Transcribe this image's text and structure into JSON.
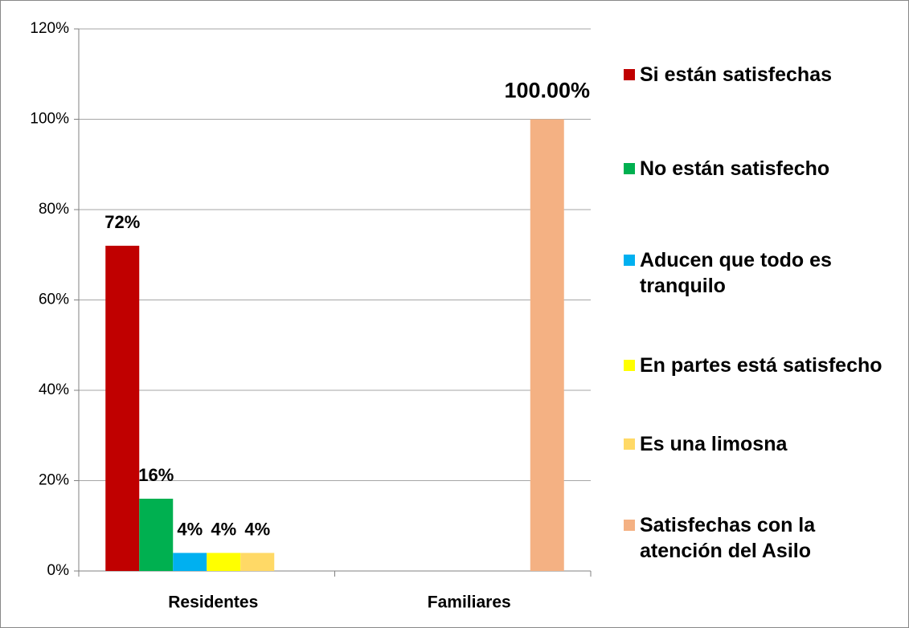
{
  "chart_data": {
    "type": "bar",
    "categories": [
      "Residentes",
      "Familiares"
    ],
    "series": [
      {
        "name": "Si están satisfechas",
        "color": "#c00000",
        "values": [
          72,
          null
        ],
        "value_labels": [
          "72%",
          null
        ]
      },
      {
        "name": "No están satisfecho",
        "color": "#00b050",
        "values": [
          16,
          null
        ],
        "value_labels": [
          "16%",
          null
        ]
      },
      {
        "name": "Aducen que todo es tranquilo",
        "color": "#00b0f0",
        "values": [
          4,
          null
        ],
        "value_labels": [
          "4%",
          null
        ]
      },
      {
        "name": "En partes está satisfecho",
        "color": "#ffff00",
        "values": [
          4,
          null
        ],
        "value_labels": [
          "4%",
          null
        ]
      },
      {
        "name": "Es una limosna",
        "color": "#ffd966",
        "values": [
          4,
          null
        ],
        "value_labels": [
          "4%",
          null
        ]
      },
      {
        "name": "Satisfechas con la atención del Asilo",
        "color": "#f4b183",
        "values": [
          null,
          100
        ],
        "value_labels": [
          null,
          "100.00%"
        ]
      }
    ],
    "ylim": [
      0,
      120
    ],
    "yticks": [
      {
        "value": 0,
        "label": "0%"
      },
      {
        "value": 20,
        "label": "20%"
      },
      {
        "value": 40,
        "label": "40%"
      },
      {
        "value": 60,
        "label": "60%"
      },
      {
        "value": 80,
        "label": "80%"
      },
      {
        "value": 100,
        "label": "100%"
      },
      {
        "value": 120,
        "label": "120%"
      }
    ],
    "grid": true,
    "legend": "right"
  }
}
